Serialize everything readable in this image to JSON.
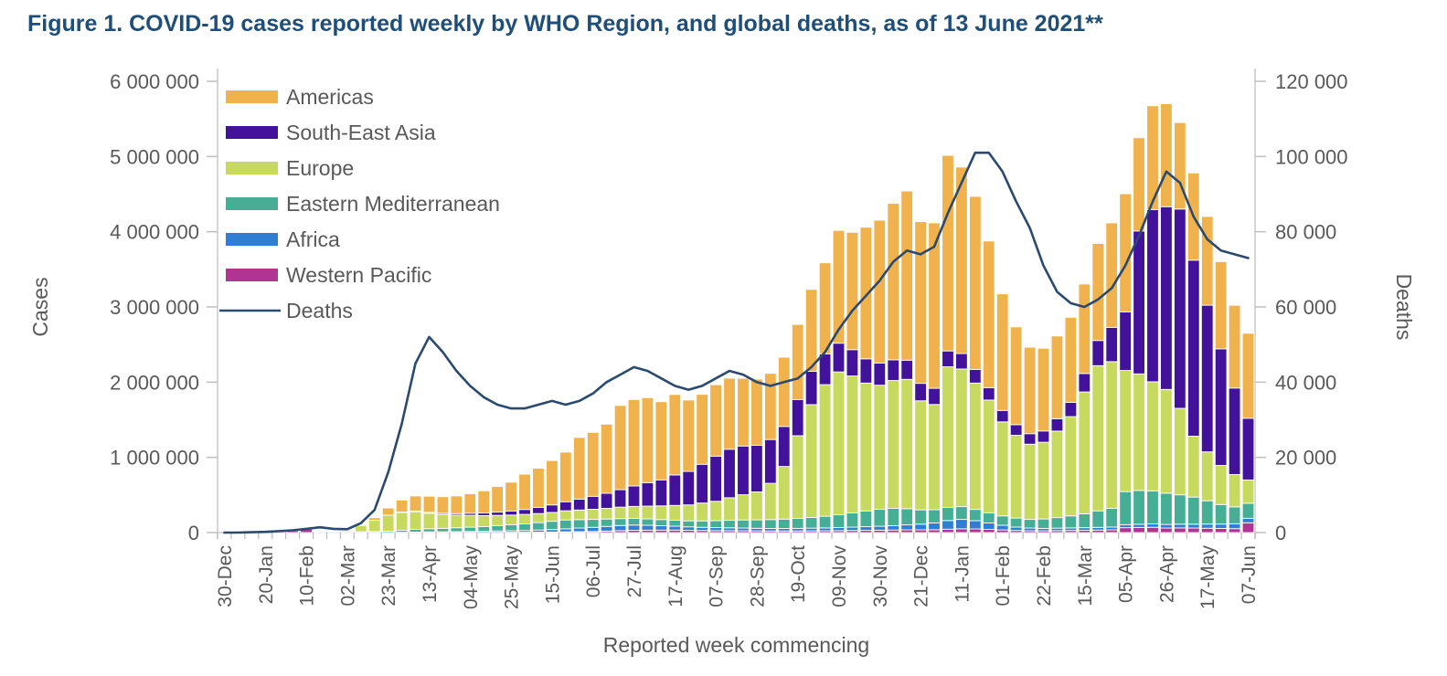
{
  "title": "Figure 1. COVID-19 cases reported weekly by WHO Region, and global deaths, as of 13 June 2021**",
  "colors": {
    "title_text": "#1F4E79",
    "axis_text": "#595959",
    "axis_line": "#C9C9C9",
    "tick_mark": "#BFBFBF",
    "bar_border": "#FFFFFF"
  },
  "chart_data": {
    "type": "bar",
    "subtype": "stacked-bars-with-line-overlay",
    "xlabel": "Reported week commencing",
    "y_left": {
      "label": "Cases",
      "min": 0,
      "max": 6000000,
      "tick_step": 1000000,
      "tick_labels": [
        "0",
        "1 000 000",
        "2 000 000",
        "3 000 000",
        "4 000 000",
        "5 000 000",
        "6 000 000"
      ]
    },
    "y_right": {
      "label": "Deaths",
      "min": 0,
      "max": 120000,
      "tick_step": 20000,
      "tick_labels": [
        "0",
        "20 000",
        "40 000",
        "60 000",
        "80 000",
        "100 000",
        "120 000"
      ]
    },
    "x_tick_label_every": 3,
    "legend_position": "inside-top-left",
    "grid": false,
    "weeks": [
      "30-Dec",
      "06-Jan",
      "13-Jan",
      "20-Jan",
      "27-Jan",
      "03-Feb",
      "10-Feb",
      "17-Feb",
      "24-Feb",
      "02-Mar",
      "09-Mar",
      "16-Mar",
      "23-Mar",
      "30-Mar",
      "06-Apr",
      "13-Apr",
      "20-Apr",
      "27-Apr",
      "04-May",
      "11-May",
      "18-May",
      "25-May",
      "01-Jun",
      "08-Jun",
      "15-Jun",
      "22-Jun",
      "29-Jun",
      "06-Jul",
      "13-Jul",
      "20-Jul",
      "27-Jul",
      "03-Aug",
      "10-Aug",
      "17-Aug",
      "24-Aug",
      "31-Aug",
      "07-Sep",
      "14-Sep",
      "21-Sep",
      "28-Sep",
      "05-Oct",
      "12-Oct",
      "19-Oct",
      "26-Oct",
      "02-Nov",
      "09-Nov",
      "16-Nov",
      "23-Nov",
      "30-Nov",
      "07-Dec",
      "14-Dec",
      "21-Dec",
      "28-Dec",
      "04-Jan",
      "11-Jan",
      "18-Jan",
      "25-Jan",
      "01-Feb",
      "08-Feb",
      "15-Feb",
      "22-Feb",
      "01-Mar",
      "08-Mar",
      "15-Mar",
      "22-Mar",
      "29-Mar",
      "05-Apr",
      "12-Apr",
      "19-Apr",
      "26-Apr",
      "03-May",
      "10-May",
      "17-May",
      "24-May",
      "31-May",
      "07-Jun"
    ],
    "stack_order_bottom_to_top": [
      "Western Pacific",
      "Africa",
      "Eastern Mediterranean",
      "Europe",
      "South-East Asia",
      "Americas"
    ],
    "series": [
      {
        "name": "Americas",
        "color": "#F0B24C",
        "values": [
          0,
          0,
          0,
          0,
          100,
          100,
          100,
          100,
          500,
          1000,
          5000,
          35000,
          95000,
          160000,
          200000,
          215000,
          220000,
          235000,
          260000,
          295000,
          340000,
          385000,
          470000,
          520000,
          590000,
          660000,
          820000,
          850000,
          920000,
          1120000,
          1150000,
          1130000,
          1040000,
          1070000,
          950000,
          930000,
          950000,
          945000,
          900000,
          880000,
          880000,
          920000,
          1000000,
          1090000,
          1210000,
          1500000,
          1560000,
          1750000,
          1900000,
          2080000,
          2250000,
          2150000,
          2200000,
          2600000,
          2480000,
          2300000,
          1950000,
          1550000,
          1300000,
          1150000,
          1100000,
          1100000,
          1130000,
          1190000,
          1290000,
          1390000,
          1570000,
          1240000,
          1380000,
          1370000,
          1150000,
          1160000,
          1180000,
          1160000,
          1100000,
          1130000
        ]
      },
      {
        "name": "South-East Asia",
        "color": "#43129B",
        "values": [
          0,
          0,
          0,
          0,
          0,
          100,
          100,
          100,
          100,
          200,
          500,
          1500,
          3000,
          6000,
          10000,
          13000,
          16000,
          20000,
          27000,
          34000,
          43000,
          52000,
          65000,
          82000,
          100000,
          120000,
          145000,
          172000,
          200000,
          232000,
          272000,
          312000,
          345000,
          405000,
          445000,
          515000,
          600000,
          645000,
          648000,
          620000,
          582000,
          532000,
          480000,
          442000,
          410000,
          382000,
          350000,
          322000,
          295000,
          275000,
          255000,
          232000,
          215000,
          210000,
          205000,
          182000,
          165000,
          152000,
          142000,
          140000,
          150000,
          165000,
          190000,
          245000,
          335000,
          455000,
          780000,
          1900000,
          2290000,
          2430000,
          2650000,
          2340000,
          1950000,
          1550000,
          1150000,
          820000
        ]
      },
      {
        "name": "Europe",
        "color": "#C7D95F",
        "values": [
          0,
          0,
          0,
          0,
          100,
          100,
          200,
          500,
          3000,
          16000,
          85000,
          150000,
          215000,
          235000,
          235000,
          205000,
          185000,
          168000,
          158000,
          146000,
          136000,
          130000,
          126000,
          121000,
          118000,
          122000,
          128000,
          135000,
          142000,
          152000,
          160000,
          170000,
          182000,
          196000,
          212000,
          238000,
          258000,
          300000,
          335000,
          372000,
          482000,
          700000,
          1100000,
          1500000,
          1750000,
          1900000,
          1820000,
          1700000,
          1650000,
          1700000,
          1720000,
          1450000,
          1400000,
          1870000,
          1830000,
          1680000,
          1500000,
          1250000,
          1100000,
          1000000,
          1020000,
          1150000,
          1320000,
          1620000,
          1930000,
          1950000,
          1610000,
          1550000,
          1450000,
          1380000,
          1150000,
          810000,
          650000,
          520000,
          430000,
          310000
        ]
      },
      {
        "name": "Eastern Mediterranean",
        "color": "#47AE96",
        "values": [
          0,
          0,
          0,
          0,
          0,
          0,
          100,
          600,
          2000,
          6000,
          10000,
          13000,
          17000,
          27000,
          35000,
          42000,
          46000,
          52000,
          58000,
          64000,
          71000,
          78000,
          88000,
          98000,
          110000,
          118000,
          112000,
          105000,
          98000,
          92000,
          88000,
          85000,
          82000,
          80000,
          80000,
          85000,
          92000,
          100000,
          108000,
          112000,
          118000,
          124000,
          132000,
          142000,
          155000,
          170000,
          190000,
          210000,
          225000,
          230000,
          215000,
          190000,
          175000,
          175000,
          170000,
          150000,
          135000,
          125000,
          120000,
          115000,
          125000,
          140000,
          160000,
          185000,
          220000,
          250000,
          440000,
          450000,
          440000,
          415000,
          390000,
          360000,
          310000,
          260000,
          225000,
          200000
        ]
      },
      {
        "name": "Africa",
        "color": "#2F7ED3",
        "values": [
          0,
          0,
          0,
          0,
          0,
          0,
          0,
          0,
          100,
          200,
          500,
          1500,
          3000,
          5000,
          7000,
          9000,
          10000,
          12000,
          14000,
          16000,
          18000,
          20000,
          23000,
          28000,
          33000,
          40000,
          48000,
          55000,
          62000,
          68000,
          70000,
          65000,
          58000,
          52000,
          46000,
          42000,
          40000,
          38000,
          36000,
          34000,
          33000,
          33000,
          34000,
          36000,
          38000,
          40000,
          44000,
          48000,
          52000,
          58000,
          66000,
          76000,
          90000,
          115000,
          125000,
          110000,
          85000,
          62000,
          45000,
          36000,
          32000,
          33000,
          34000,
          35000,
          36000,
          37000,
          40000,
          42000,
          45000,
          48000,
          50000,
          52000,
          55000,
          58000,
          65000,
          60000
        ]
      },
      {
        "name": "Western Pacific",
        "color": "#B23492",
        "values": [
          100,
          100,
          600,
          2800,
          17000,
          23000,
          46000,
          11000,
          4000,
          3500,
          3000,
          3000,
          2500,
          2000,
          2000,
          2000,
          2000,
          2500,
          3000,
          3000,
          4000,
          5000,
          5000,
          6000,
          7000,
          10000,
          12000,
          15000,
          20000,
          26000,
          30000,
          32000,
          33000,
          33000,
          30000,
          28000,
          26000,
          25000,
          24000,
          23000,
          22000,
          22000,
          22000,
          23000,
          24000,
          26000,
          28000,
          30000,
          32000,
          34000,
          36000,
          36000,
          38000,
          45000,
          50000,
          48000,
          42000,
          35000,
          28000,
          24000,
          24000,
          26000,
          28000,
          30000,
          33000,
          36000,
          65000,
          68000,
          70000,
          60000,
          62000,
          60000,
          58000,
          55000,
          52000,
          130000
        ]
      }
    ],
    "line": {
      "name": "Deaths",
      "color": "#2B4A6F",
      "axis": "right",
      "values": [
        0,
        0,
        100,
        200,
        400,
        600,
        1000,
        1400,
        1000,
        900,
        2500,
        6000,
        16000,
        29000,
        45000,
        52000,
        48000,
        43000,
        39000,
        36000,
        34000,
        33000,
        33000,
        34000,
        35000,
        34000,
        35000,
        37000,
        40000,
        42000,
        44000,
        43000,
        41000,
        39000,
        38000,
        39000,
        41000,
        43000,
        42000,
        40000,
        39000,
        40000,
        41000,
        44000,
        48000,
        54000,
        59000,
        63000,
        67000,
        72000,
        75000,
        74000,
        76000,
        85000,
        93000,
        101000,
        101000,
        96000,
        88000,
        81000,
        71000,
        64000,
        61000,
        60000,
        62000,
        65000,
        71000,
        79000,
        88000,
        96000,
        93000,
        84000,
        78000,
        75000,
        74000,
        73000
      ]
    },
    "legend": [
      {
        "label": "Americas",
        "marker": "swatch",
        "color": "#F0B24C"
      },
      {
        "label": "South-East Asia",
        "marker": "swatch",
        "color": "#43129B"
      },
      {
        "label": "Europe",
        "marker": "swatch",
        "color": "#C7D95F"
      },
      {
        "label": "Eastern Mediterranean",
        "marker": "swatch",
        "color": "#47AE96"
      },
      {
        "label": "Africa",
        "marker": "swatch",
        "color": "#2F7ED3"
      },
      {
        "label": "Western Pacific",
        "marker": "swatch",
        "color": "#B23492"
      },
      {
        "label": "Deaths",
        "marker": "line",
        "color": "#2B4A6F"
      }
    ]
  }
}
